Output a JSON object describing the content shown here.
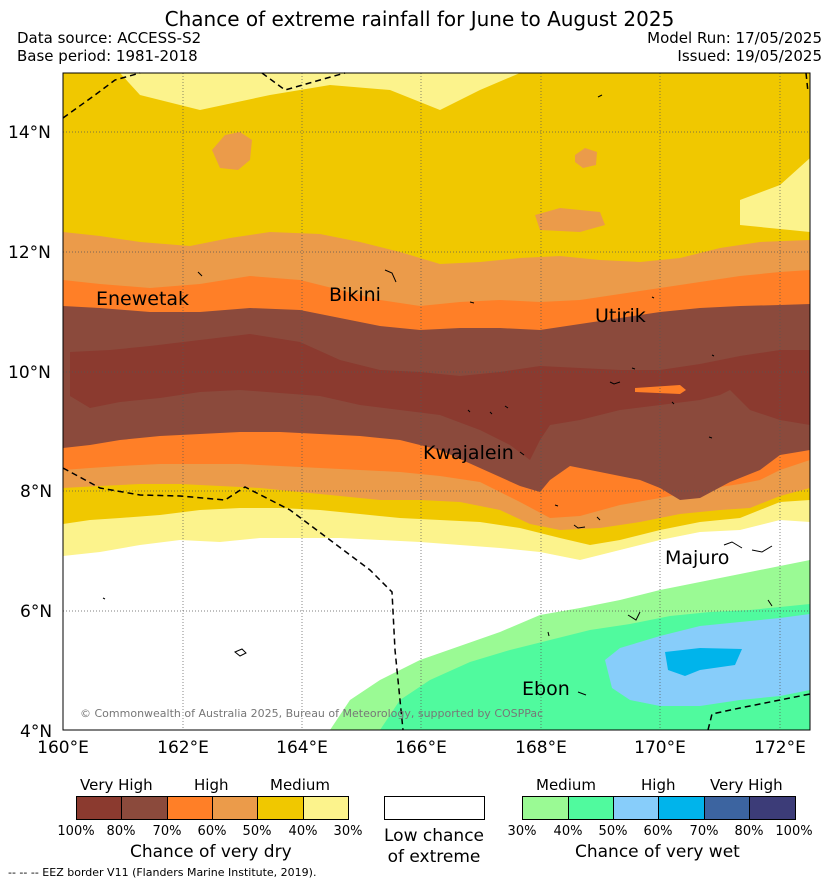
{
  "header": {
    "title": "Chance of extreme rainfall for June to August 2025",
    "data_source": "Data source: ACCESS-S2",
    "base_period": "Base period: 1981-2018",
    "model_run": "Model Run: 17/05/2025",
    "issued": "Issued: 19/05/2025"
  },
  "map": {
    "lat_labels": [
      "14°N",
      "12°N",
      "10°N",
      "8°N",
      "6°N",
      "4°N"
    ],
    "lon_labels": [
      "160°E",
      "162°E",
      "164°E",
      "166°E",
      "168°E",
      "170°E",
      "172°E"
    ],
    "places": {
      "enewetak": "Enewetak",
      "bikini": "Bikini",
      "utirik": "Utirik",
      "kwajalein": "Kwajalein",
      "majuro": "Majuro",
      "ebon": "Ebon"
    },
    "copyright": "© Commonwealth of Australia 2025, Bureau of Meteorology, supported by COSPPac"
  },
  "colors": {
    "dry_100_80": "#8b3a2f",
    "dry_80_70": "#8b4a3c",
    "dry_70_60": "#ff7f27",
    "dry_60_50": "#eb9b4a",
    "dry_50_40": "#f0c800",
    "dry_40_30": "#fcf38c",
    "low": "#ffffff",
    "wet_30_40": "#9afa94",
    "wet_40_50": "#50fa9e",
    "wet_50_60": "#87cdfa",
    "wet_60_70": "#00b4eb",
    "wet_70_80": "#3c64a0",
    "wet_80_100": "#3c3c78"
  },
  "legend": {
    "dry": {
      "categories": [
        "Very High",
        "High",
        "Medium"
      ],
      "ticks": [
        "100%",
        "80%",
        "70%",
        "60%",
        "50%",
        "40%",
        "30%"
      ],
      "title": "Chance of very dry"
    },
    "low": {
      "label": "Low chance of extreme"
    },
    "wet": {
      "categories": [
        "Medium",
        "High",
        "Very High"
      ],
      "ticks": [
        "30%",
        "40%",
        "50%",
        "60%",
        "70%",
        "80%",
        "100%"
      ],
      "title": "Chance of very wet"
    },
    "eez_note": "-- -- -- EEZ border V11 (Flanders Marine Institute, 2019)."
  }
}
